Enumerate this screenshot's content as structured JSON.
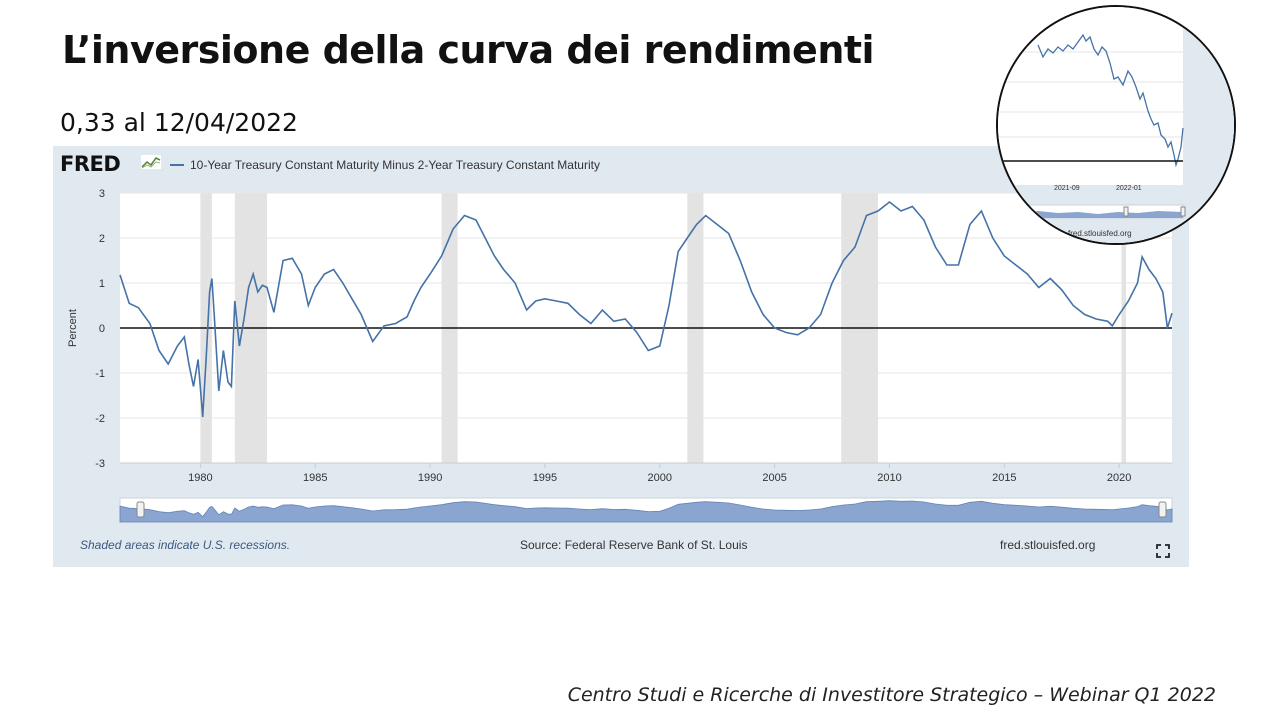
{
  "slide": {
    "title": "L’inversione della curva dei rendimenti",
    "subtitle": "0,33 al 12/04/2022",
    "caption": "Centro Studi e Ricerche di Investitore Strategico – Webinar Q1 2022"
  },
  "fred": {
    "logo_text": "FRED",
    "footer_recessions": "Shaded areas indicate U.S. recessions.",
    "footer_source": "Source: Federal Reserve Bank of St. Louis",
    "footer_site": "fred.stlouisfed.org",
    "expand_icon": "expand-icon"
  },
  "zoom": {
    "ticks": [
      "2021-09",
      "2022-01"
    ],
    "site": "fred.stlouisfed.org"
  },
  "colors": {
    "line": "#4572a7",
    "panel": "#e1e9f0",
    "recession": "#e3e3e3",
    "navigator": "#8aa5cf"
  },
  "chart_data": {
    "type": "line",
    "title": "",
    "xlabel": "",
    "ylabel": "Percent",
    "ylim": [
      -3,
      3
    ],
    "xlim": [
      1976.5,
      2022.3
    ],
    "yticks": [
      "3",
      "2",
      "1",
      "0",
      "-1",
      "-2",
      "-3"
    ],
    "xticks": [
      "1980",
      "1985",
      "1990",
      "1995",
      "2000",
      "2005",
      "2010",
      "2015",
      "2020"
    ],
    "grid": true,
    "zero_line": true,
    "legend_position": "top-left",
    "recessions": [
      [
        1980.0,
        1980.5
      ],
      [
        1981.5,
        1982.9
      ],
      [
        1990.5,
        1991.2
      ],
      [
        2001.2,
        2001.9
      ],
      [
        2007.9,
        2009.5
      ],
      [
        2020.1,
        2020.3
      ]
    ],
    "series": [
      {
        "name": "10-Year Treasury Constant Maturity Minus 2-Year Treasury Constant Maturity",
        "x": [
          1976.5,
          1976.9,
          1977.3,
          1977.8,
          1978.2,
          1978.6,
          1978.8,
          1979.0,
          1979.3,
          1979.5,
          1979.7,
          1979.9,
          1980.1,
          1980.25,
          1980.4,
          1980.5,
          1980.6,
          1980.8,
          1981.0,
          1981.2,
          1981.35,
          1981.5,
          1981.7,
          1981.9,
          1982.1,
          1982.3,
          1982.5,
          1982.7,
          1982.9,
          1983.2,
          1983.6,
          1984.0,
          1984.4,
          1984.7,
          1985.0,
          1985.4,
          1985.8,
          1986.2,
          1986.6,
          1987.0,
          1987.5,
          1988.0,
          1988.5,
          1989.0,
          1989.3,
          1989.6,
          1990.0,
          1990.5,
          1991.0,
          1991.5,
          1992.0,
          1992.5,
          1992.8,
          1993.2,
          1993.7,
          1994.2,
          1994.6,
          1995.0,
          1995.5,
          1996.0,
          1996.5,
          1997.0,
          1997.5,
          1998.0,
          1998.5,
          1999.0,
          1999.5,
          2000.0,
          2000.4,
          2000.8,
          2001.2,
          2001.6,
          2002.0,
          2002.5,
          2003.0,
          2003.5,
          2004.0,
          2004.5,
          2005.0,
          2005.5,
          2006.0,
          2006.5,
          2007.0,
          2007.5,
          2008.0,
          2008.5,
          2009.0,
          2009.5,
          2010.0,
          2010.5,
          2011.0,
          2011.5,
          2012.0,
          2012.5,
          2013.0,
          2013.5,
          2014.0,
          2014.5,
          2015.0,
          2015.5,
          2016.0,
          2016.5,
          2017.0,
          2017.5,
          2018.0,
          2018.5,
          2019.0,
          2019.5,
          2019.7,
          2020.0,
          2020.4,
          2020.8,
          2021.0,
          2021.3,
          2021.6,
          2021.9,
          2022.1,
          2022.3
        ],
        "values": [
          1.18,
          0.55,
          0.45,
          0.1,
          -0.5,
          -0.8,
          -0.6,
          -0.4,
          -0.2,
          -0.8,
          -1.3,
          -0.7,
          -1.98,
          -0.7,
          0.8,
          1.1,
          0.3,
          -1.4,
          -0.5,
          -1.2,
          -1.3,
          0.6,
          -0.4,
          0.2,
          0.9,
          1.2,
          0.8,
          0.95,
          0.9,
          0.35,
          1.5,
          1.55,
          1.2,
          0.5,
          0.9,
          1.2,
          1.3,
          1.0,
          0.65,
          0.3,
          -0.3,
          0.05,
          0.1,
          0.25,
          0.6,
          0.9,
          1.2,
          1.6,
          2.2,
          2.5,
          2.4,
          1.9,
          1.6,
          1.3,
          1.0,
          0.4,
          0.6,
          0.65,
          0.6,
          0.55,
          0.3,
          0.1,
          0.4,
          0.15,
          0.2,
          -0.1,
          -0.5,
          -0.4,
          0.5,
          1.7,
          2.0,
          2.3,
          2.5,
          2.3,
          2.1,
          1.5,
          0.8,
          0.3,
          0.0,
          -0.1,
          -0.15,
          0.0,
          0.3,
          1.0,
          1.5,
          1.8,
          2.5,
          2.6,
          2.8,
          2.6,
          2.7,
          2.4,
          1.8,
          1.4,
          1.4,
          2.3,
          2.6,
          2.0,
          1.6,
          1.4,
          1.2,
          0.9,
          1.1,
          0.85,
          0.5,
          0.3,
          0.2,
          0.15,
          0.05,
          0.3,
          0.6,
          1.0,
          1.58,
          1.3,
          1.1,
          0.8,
          0.0,
          0.33
        ]
      }
    ]
  }
}
